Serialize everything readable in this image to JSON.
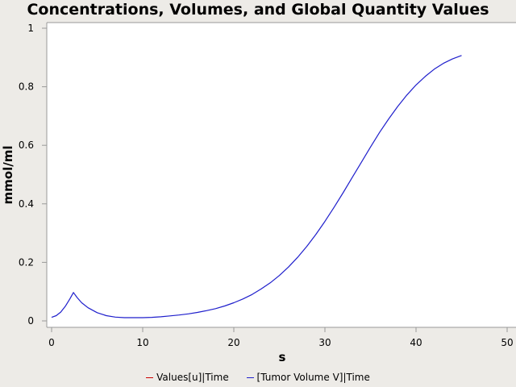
{
  "chart_data": {
    "type": "line",
    "title": "Concentrations, Volumes, and Global Quantity Values",
    "xlabel": "s",
    "ylabel": "mmol/ml",
    "xlim": [
      0,
      50
    ],
    "ylim": [
      0,
      1
    ],
    "x_ticks": [
      "0",
      "10",
      "20",
      "30",
      "40",
      "50"
    ],
    "y_ticks": [
      "0",
      "0.2",
      "0.4",
      "0.6",
      "0.8",
      "1"
    ],
    "grid": false,
    "legend_position": "bottom",
    "series": [
      {
        "name": "Values[u]|Time",
        "color": "#cc0000",
        "x": [],
        "y": []
      },
      {
        "name": "[Tumor Volume V]|Time",
        "color": "#1f1fcc",
        "x": [
          0.0,
          0.5,
          1.0,
          1.5,
          2.0,
          2.4,
          2.8,
          3.3,
          4.0,
          5.0,
          6.0,
          7.0,
          8.0,
          9.0,
          10.0,
          11.0,
          12.0,
          13.0,
          14.0,
          15.0,
          16.0,
          17.0,
          18.0,
          19.0,
          20.0,
          21.0,
          22.0,
          23.0,
          24.0,
          25.0,
          26.0,
          27.0,
          28.0,
          29.0,
          30.0,
          31.0,
          32.0,
          33.0,
          34.0,
          35.0,
          36.0,
          37.0,
          38.0,
          39.0,
          40.0,
          41.0,
          42.0,
          43.0,
          44.0,
          45.0
        ],
        "y": [
          0.012,
          0.018,
          0.03,
          0.05,
          0.075,
          0.097,
          0.08,
          0.062,
          0.045,
          0.028,
          0.018,
          0.013,
          0.011,
          0.011,
          0.011,
          0.012,
          0.014,
          0.017,
          0.02,
          0.024,
          0.029,
          0.035,
          0.042,
          0.051,
          0.062,
          0.075,
          0.09,
          0.109,
          0.13,
          0.155,
          0.184,
          0.217,
          0.254,
          0.295,
          0.34,
          0.388,
          0.438,
          0.49,
          0.542,
          0.594,
          0.644,
          0.69,
          0.733,
          0.772,
          0.806,
          0.835,
          0.86,
          0.88,
          0.895,
          0.907
        ]
      }
    ]
  }
}
